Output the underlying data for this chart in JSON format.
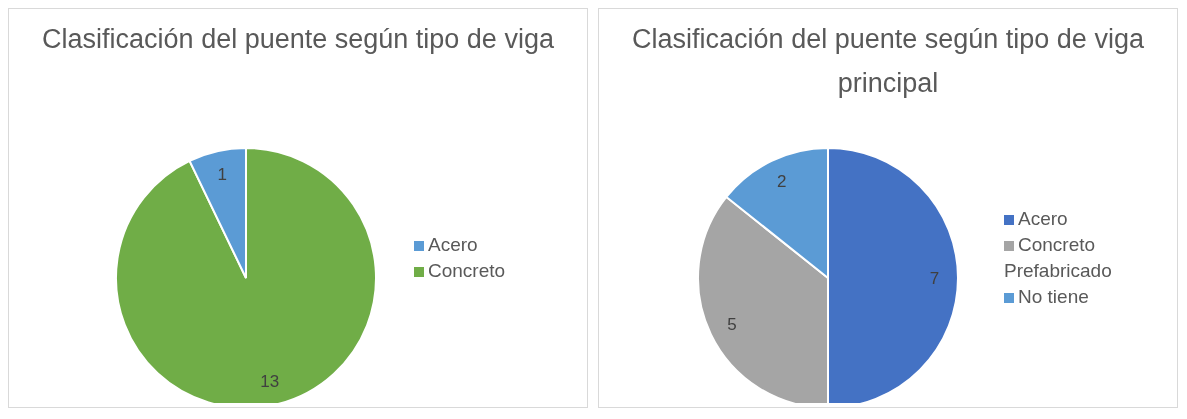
{
  "chart_data": [
    {
      "type": "pie",
      "title": "Clasificación del puente según tipo de viga",
      "categories": [
        "Concreto",
        "Acero"
      ],
      "values": [
        13,
        1
      ],
      "colors": [
        "#70ad47",
        "#5b9bd5"
      ],
      "data_labels": true,
      "legend": "right"
    },
    {
      "type": "pie",
      "title": "Clasificación del puente según tipo de viga principal",
      "categories": [
        "Acero",
        "Concreto Prefabricado",
        "No tiene"
      ],
      "values": [
        7,
        5,
        2
      ],
      "colors": [
        "#4472c4",
        "#a5a5a5",
        "#5b9bd5"
      ],
      "data_labels": true,
      "legend": "right"
    }
  ]
}
